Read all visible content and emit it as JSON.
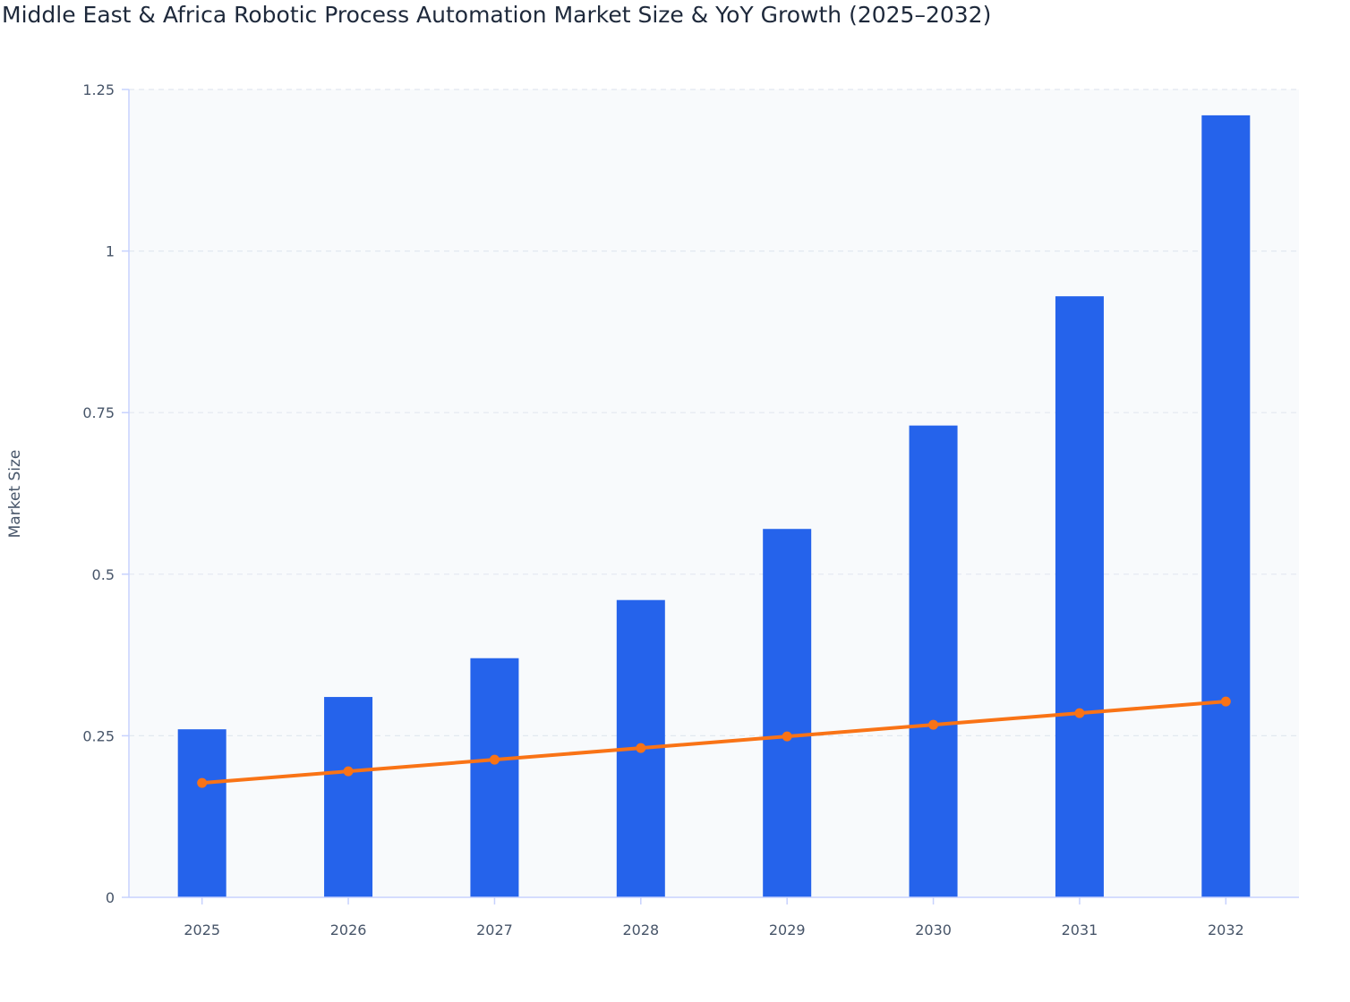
{
  "chart_data": {
    "type": "bar",
    "title": "Middle East & Africa Robotic Process Automation Market Size & YoY Growth (2025–2032)",
    "xlabel": "",
    "ylabel": "Market Size",
    "ylim": [
      0,
      1.25
    ],
    "yticks": [
      0,
      0.25,
      0.5,
      0.75,
      1,
      1.25
    ],
    "ytick_labels": [
      "0",
      "0.25",
      "0.5",
      "0.75",
      "1",
      "1.25"
    ],
    "categories": [
      "2025",
      "2026",
      "2027",
      "2028",
      "2029",
      "2030",
      "2031",
      "2032"
    ],
    "grid": true,
    "series": [
      {
        "type": "bar",
        "color": "#2563eb",
        "values": [
          0.26,
          0.31,
          0.37,
          0.46,
          0.57,
          0.73,
          0.93,
          1.21
        ]
      },
      {
        "type": "line",
        "color": "#f97316",
        "values": [
          0.177,
          0.195,
          0.213,
          0.231,
          0.249,
          0.267,
          0.285,
          0.303
        ]
      }
    ]
  }
}
